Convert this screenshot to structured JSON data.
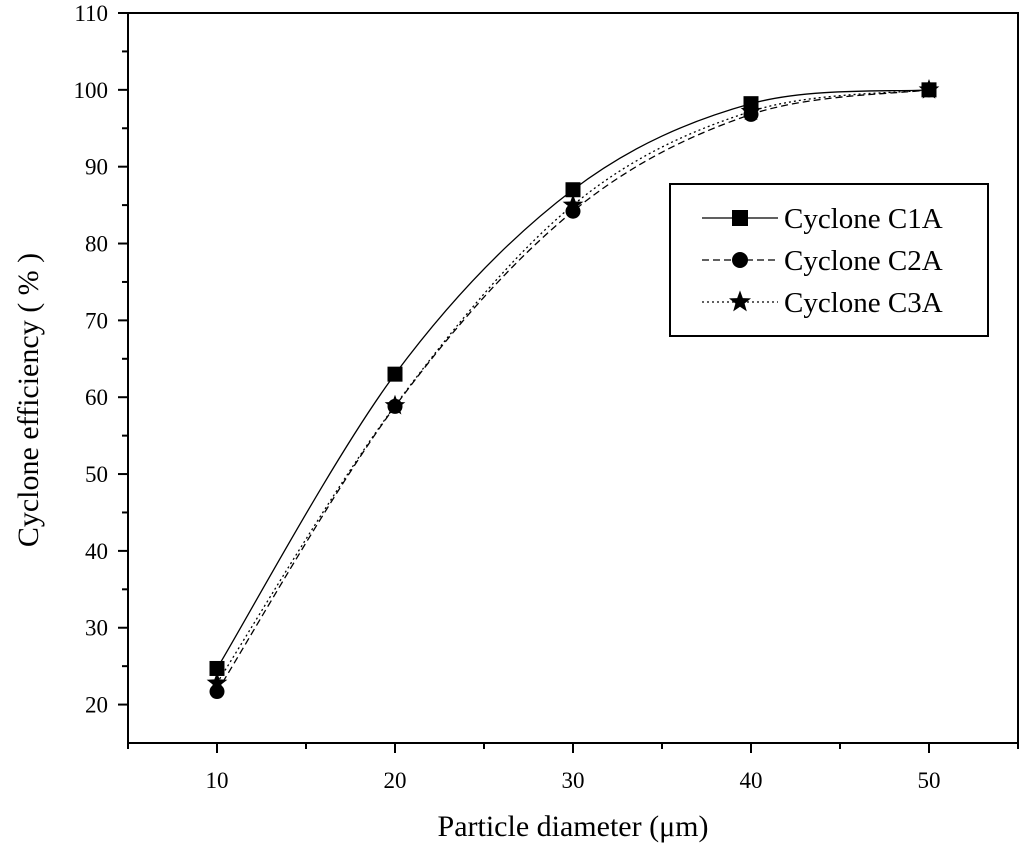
{
  "chart_data": {
    "type": "line",
    "title": "",
    "xlabel": "Particle diameter (μm)",
    "ylabel": "Cyclone efficiency ( % )",
    "xlim": [
      5,
      55
    ],
    "ylim": [
      15,
      110
    ],
    "x_ticks": [
      10,
      20,
      30,
      40,
      50
    ],
    "y_ticks": [
      20,
      30,
      40,
      50,
      60,
      70,
      80,
      90,
      100,
      110
    ],
    "x_tick_labels": [
      "10",
      "20",
      "30",
      "40",
      "50"
    ],
    "y_tick_labels": [
      "20",
      "30",
      "40",
      "50",
      "60",
      "70",
      "80",
      "90",
      "100",
      "110"
    ],
    "grid": false,
    "legend_position": "upper-right",
    "series": [
      {
        "name": "Cyclone C1A",
        "marker": "square",
        "line_style": "solid",
        "x": [
          10,
          20,
          30,
          40,
          50
        ],
        "y": [
          24.7,
          63.0,
          87.0,
          98.2,
          100.0
        ]
      },
      {
        "name": "Cyclone C2A",
        "marker": "circle",
        "line_style": "dashed",
        "x": [
          10,
          20,
          30,
          40,
          50
        ],
        "y": [
          21.7,
          58.8,
          84.2,
          96.8,
          100.0
        ]
      },
      {
        "name": "Cyclone C3A",
        "marker": "star",
        "line_style": "dotted",
        "x": [
          10,
          20,
          30,
          40,
          50
        ],
        "y": [
          22.8,
          58.9,
          85.0,
          97.2,
          100.0
        ]
      }
    ]
  }
}
